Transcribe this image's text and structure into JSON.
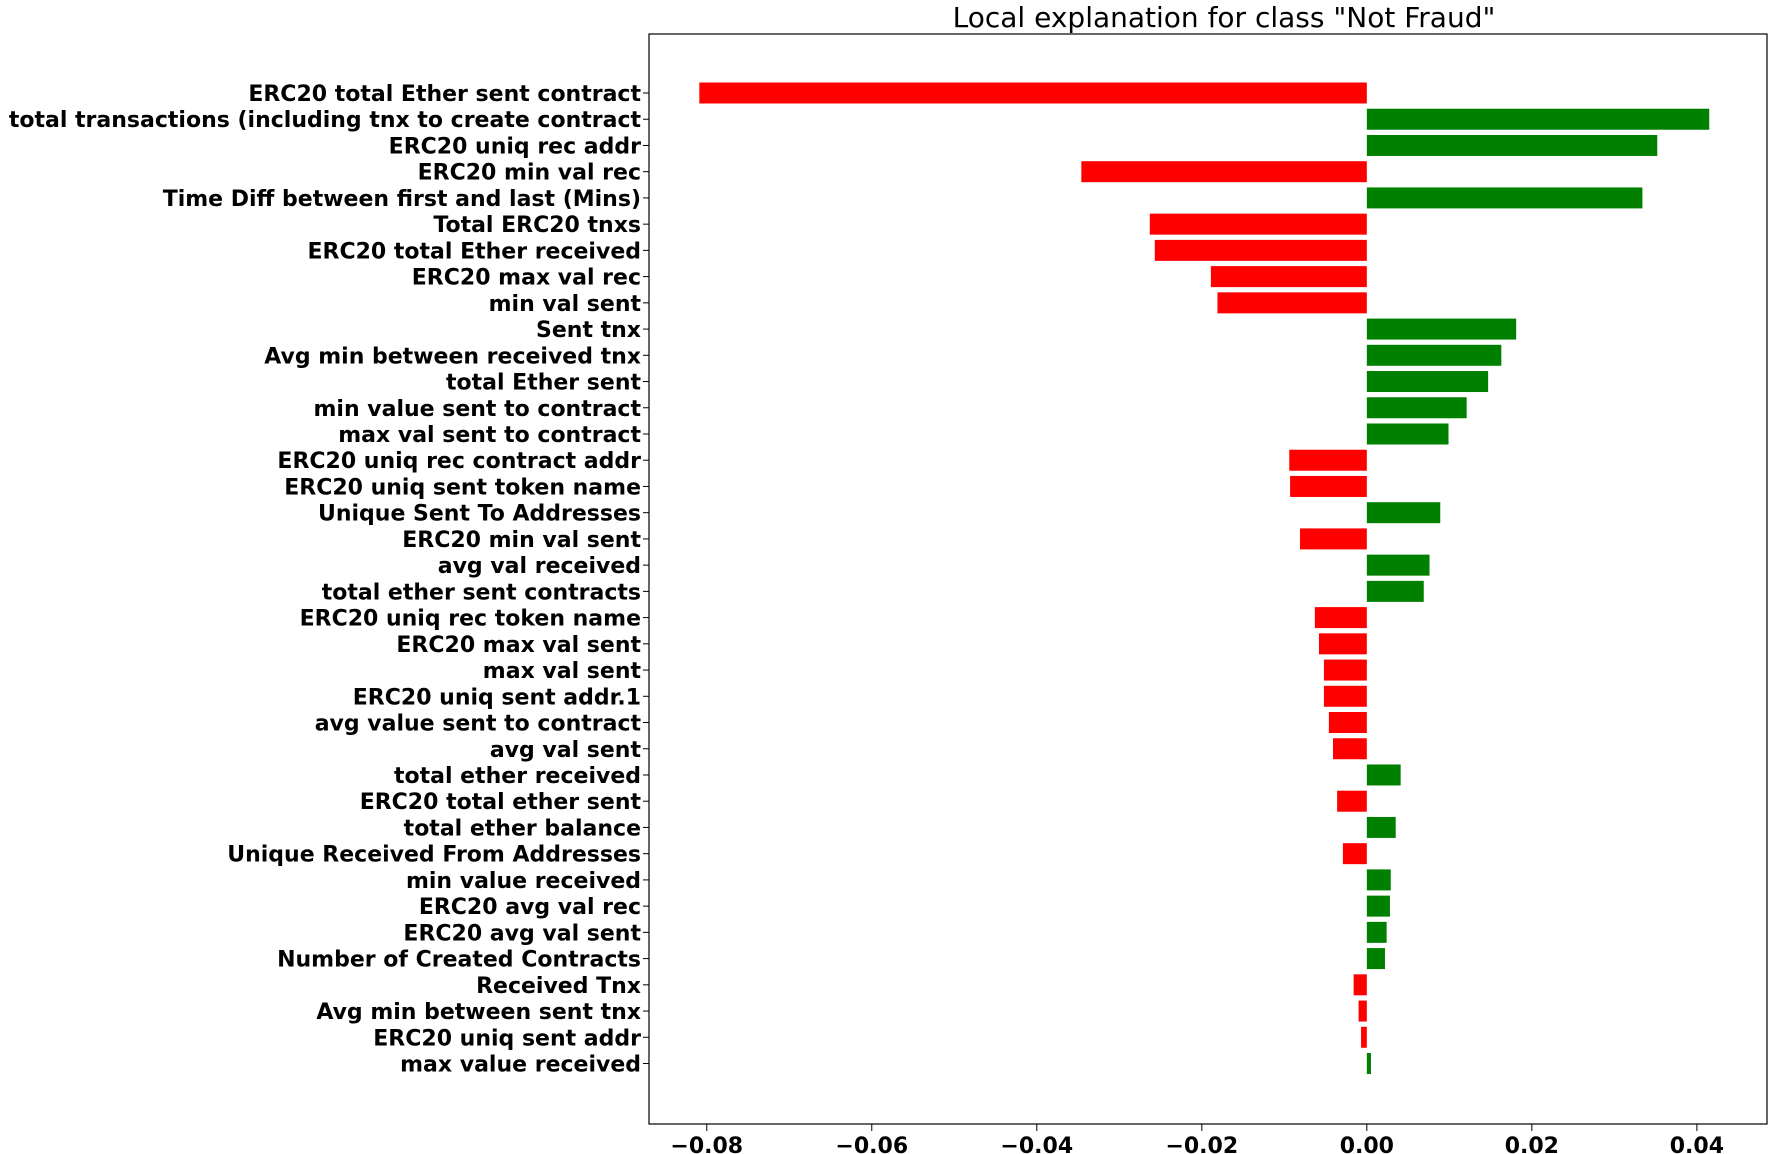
{
  "chart_data": {
    "type": "bar",
    "orientation": "horizontal",
    "title": "Local explanation for class \"Not Fraud\"",
    "xlabel": "",
    "ylabel": "",
    "xlim": [
      -0.087,
      0.0485
    ],
    "grid": false,
    "colors": {
      "positive": "#008000",
      "negative": "#ff0000"
    },
    "xticks": [
      {
        "value": -0.08,
        "label": "−0.08"
      },
      {
        "value": -0.06,
        "label": "−0.06"
      },
      {
        "value": -0.04,
        "label": "−0.04"
      },
      {
        "value": -0.02,
        "label": "−0.02"
      },
      {
        "value": 0.0,
        "label": "0.00"
      },
      {
        "value": 0.02,
        "label": "0.02"
      },
      {
        "value": 0.04,
        "label": "0.04"
      }
    ],
    "categories": [
      "ERC20 total Ether sent contract",
      "total transactions (including tnx to create contract",
      "ERC20 uniq rec addr",
      "ERC20 min val rec",
      "Time Diff between first and last (Mins)",
      "Total ERC20 tnxs",
      "ERC20 total Ether received",
      "ERC20 max val rec",
      "min val sent",
      "Sent tnx",
      "Avg min between received tnx",
      "total Ether sent",
      "min value sent to contract",
      "max val sent to contract",
      "ERC20 uniq rec contract addr",
      "ERC20 uniq sent token name",
      "Unique Sent To Addresses",
      "ERC20 min val sent",
      "avg val received",
      "total ether sent contracts",
      "ERC20 uniq rec token name",
      "ERC20 max val sent",
      "max val sent",
      "ERC20 uniq sent addr.1",
      "avg value sent to contract",
      "avg val sent",
      "total ether received",
      "ERC20 total ether sent",
      "total ether balance",
      "Unique Received From Addresses",
      "min value received",
      "ERC20 avg val rec",
      "ERC20 avg val sent",
      "Number of Created Contracts",
      "Received Tnx",
      "Avg min between sent tnx",
      "ERC20 uniq sent addr",
      "max value received "
    ],
    "values": [
      -0.0809,
      0.0415,
      0.0352,
      -0.0346,
      0.0334,
      -0.0263,
      -0.0257,
      -0.0189,
      -0.0181,
      0.0181,
      0.0163,
      0.0147,
      0.0121,
      0.0099,
      -0.0094,
      -0.0093,
      0.0089,
      -0.0081,
      0.0076,
      0.0069,
      -0.0063,
      -0.0058,
      -0.0052,
      -0.0052,
      -0.0046,
      -0.0041,
      0.0041,
      -0.0036,
      0.0035,
      -0.0029,
      0.0029,
      0.0028,
      0.0024,
      0.0022,
      -0.0016,
      -0.001,
      -0.0007,
      0.0005
    ]
  }
}
